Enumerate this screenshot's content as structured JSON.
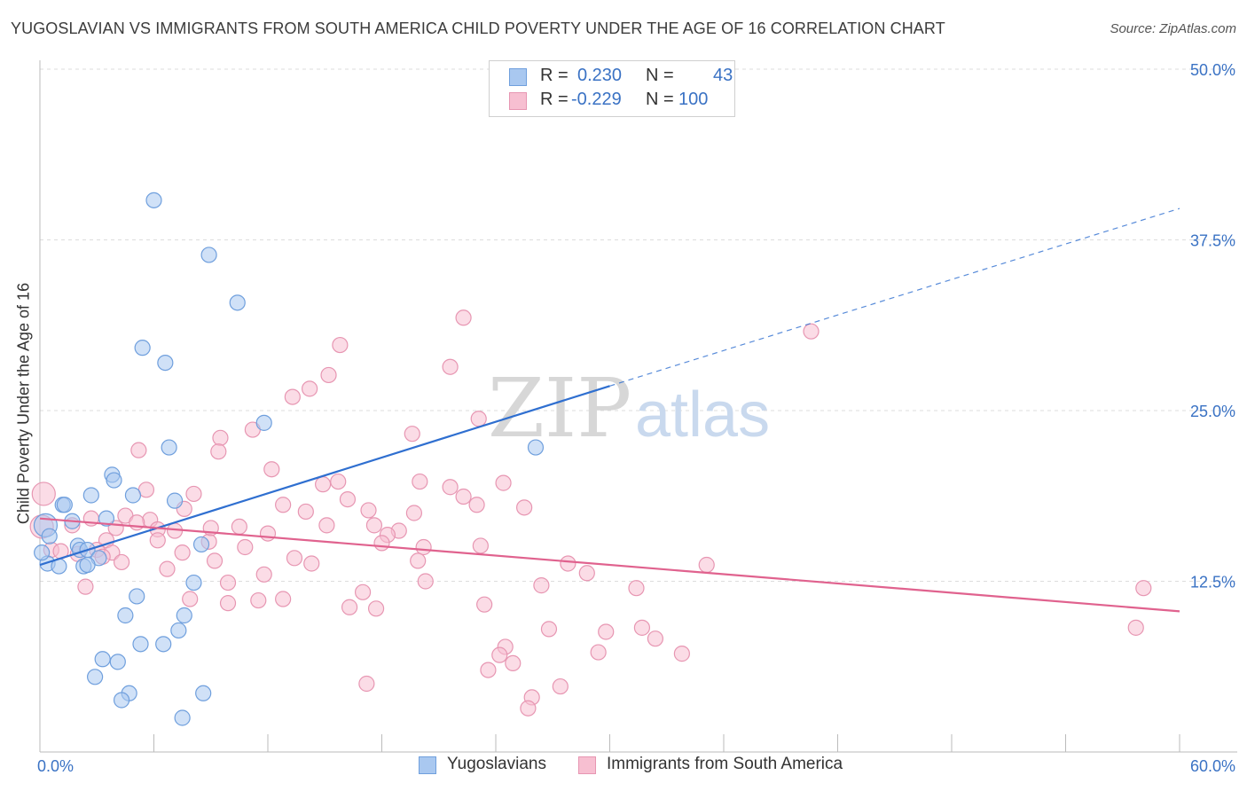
{
  "header": {
    "title": "YUGOSLAVIAN VS IMMIGRANTS FROM SOUTH AMERICA CHILD POVERTY UNDER THE AGE OF 16 CORRELATION CHART",
    "source": "Source: ZipAtlas.com"
  },
  "watermark": {
    "zip": "ZIP",
    "atlas": "atlas"
  },
  "legend": {
    "rows": [
      {
        "r_label": "R =",
        "r_value": "0.230",
        "n_label": "N =",
        "n_value": "43"
      },
      {
        "r_label": "R =",
        "r_value": "-0.229",
        "n_label": "N =",
        "n_value": "100"
      }
    ]
  },
  "bottom_legend": {
    "series1": "Yugoslavians",
    "series2": "Immigrants from South America"
  },
  "colors": {
    "blue_fill": "#a9c8f0",
    "blue_stroke": "#6f9fdd",
    "blue_line": "#2f6fd0",
    "pink_fill": "#f7bfd1",
    "pink_stroke": "#e796b2",
    "pink_line": "#e0628e",
    "tick_label": "#3a72c4",
    "grid": "#dddddd"
  },
  "chart_data": {
    "type": "scatter",
    "title": "YUGOSLAVIAN VS IMMIGRANTS FROM SOUTH AMERICA CHILD POVERTY UNDER THE AGE OF 16 CORRELATION CHART",
    "xlabel": "",
    "ylabel": "Child Poverty Under the Age of 16",
    "xlim": [
      0,
      60
    ],
    "ylim": [
      0,
      50
    ],
    "x_tick_labels": [
      "0.0%",
      "60.0%"
    ],
    "y_ticks": [
      12.5,
      25.0,
      37.5,
      50.0
    ],
    "y_tick_labels": [
      "12.5%",
      "25.0%",
      "37.5%",
      "50.0%"
    ],
    "grid": true,
    "legend_position": "top-center",
    "series": [
      {
        "name": "Yugoslavians",
        "color": "#a9c8f0",
        "trend": {
          "x": [
            0,
            30
          ],
          "y": [
            13.7,
            26.8
          ],
          "dashed_extension_to": [
            60,
            39.8
          ]
        },
        "points": [
          [
            6.0,
            40.4
          ],
          [
            8.9,
            36.4
          ],
          [
            10.4,
            32.9
          ],
          [
            5.4,
            29.6
          ],
          [
            6.6,
            28.5
          ],
          [
            11.8,
            24.1
          ],
          [
            6.8,
            22.3
          ],
          [
            26.1,
            22.3
          ],
          [
            3.8,
            20.3
          ],
          [
            3.9,
            19.9
          ],
          [
            2.7,
            18.8
          ],
          [
            4.9,
            18.8
          ],
          [
            7.1,
            18.4
          ],
          [
            1.2,
            18.1
          ],
          [
            1.3,
            18.1
          ],
          [
            0.3,
            16.6
          ],
          [
            1.7,
            16.9
          ],
          [
            3.5,
            17.1
          ],
          [
            0.5,
            15.8
          ],
          [
            2.0,
            15.1
          ],
          [
            2.1,
            14.8
          ],
          [
            2.5,
            14.8
          ],
          [
            8.5,
            15.2
          ],
          [
            3.1,
            14.2
          ],
          [
            0.4,
            13.8
          ],
          [
            1.0,
            13.6
          ],
          [
            2.3,
            13.6
          ],
          [
            2.5,
            13.7
          ],
          [
            8.1,
            12.4
          ],
          [
            5.1,
            11.4
          ],
          [
            4.5,
            10.0
          ],
          [
            7.6,
            10.0
          ],
          [
            7.3,
            8.9
          ],
          [
            5.3,
            7.9
          ],
          [
            6.5,
            7.9
          ],
          [
            3.3,
            6.8
          ],
          [
            4.1,
            6.6
          ],
          [
            2.9,
            5.5
          ],
          [
            4.7,
            4.3
          ],
          [
            8.6,
            4.3
          ],
          [
            4.3,
            3.8
          ],
          [
            7.5,
            2.5
          ],
          [
            0.1,
            14.6
          ]
        ]
      },
      {
        "name": "Immigrants from South America",
        "color": "#f7bfd1",
        "trend": {
          "x": [
            0,
            60
          ],
          "y": [
            17.1,
            10.3
          ]
        },
        "points": [
          [
            22.3,
            31.8
          ],
          [
            40.6,
            30.8
          ],
          [
            15.8,
            29.8
          ],
          [
            21.6,
            28.2
          ],
          [
            15.2,
            27.6
          ],
          [
            14.2,
            26.6
          ],
          [
            13.3,
            26.0
          ],
          [
            23.1,
            24.4
          ],
          [
            11.2,
            23.6
          ],
          [
            19.6,
            23.3
          ],
          [
            9.5,
            23.0
          ],
          [
            5.2,
            22.1
          ],
          [
            9.4,
            22.0
          ],
          [
            12.2,
            20.7
          ],
          [
            20.0,
            19.8
          ],
          [
            24.4,
            19.7
          ],
          [
            15.7,
            19.8
          ],
          [
            14.9,
            19.6
          ],
          [
            21.6,
            19.4
          ],
          [
            5.6,
            19.2
          ],
          [
            22.3,
            18.7
          ],
          [
            8.1,
            18.9
          ],
          [
            16.2,
            18.5
          ],
          [
            12.8,
            18.1
          ],
          [
            23.0,
            18.1
          ],
          [
            25.5,
            17.9
          ],
          [
            7.6,
            17.8
          ],
          [
            17.3,
            17.7
          ],
          [
            14.0,
            17.6
          ],
          [
            19.7,
            17.5
          ],
          [
            4.5,
            17.3
          ],
          [
            2.7,
            17.1
          ],
          [
            5.8,
            17.0
          ],
          [
            5.1,
            16.8
          ],
          [
            1.7,
            16.6
          ],
          [
            10.5,
            16.5
          ],
          [
            15.1,
            16.6
          ],
          [
            17.6,
            16.6
          ],
          [
            4.0,
            16.4
          ],
          [
            6.2,
            16.3
          ],
          [
            7.1,
            16.2
          ],
          [
            18.9,
            16.2
          ],
          [
            12.0,
            16.0
          ],
          [
            18.3,
            15.9
          ],
          [
            3.5,
            15.5
          ],
          [
            6.2,
            15.5
          ],
          [
            8.9,
            15.4
          ],
          [
            18.0,
            15.3
          ],
          [
            20.2,
            15.0
          ],
          [
            23.2,
            15.1
          ],
          [
            10.8,
            15.0
          ],
          [
            0.6,
            14.8
          ],
          [
            3.0,
            14.8
          ],
          [
            1.1,
            14.7
          ],
          [
            7.5,
            14.6
          ],
          [
            2.0,
            14.5
          ],
          [
            3.8,
            14.6
          ],
          [
            3.3,
            14.3
          ],
          [
            13.4,
            14.2
          ],
          [
            4.3,
            13.9
          ],
          [
            9.2,
            14.0
          ],
          [
            14.3,
            13.8
          ],
          [
            19.9,
            14.0
          ],
          [
            27.8,
            13.8
          ],
          [
            35.1,
            13.7
          ],
          [
            6.7,
            13.4
          ],
          [
            11.8,
            13.0
          ],
          [
            9.9,
            12.4
          ],
          [
            20.3,
            12.5
          ],
          [
            26.4,
            12.2
          ],
          [
            31.4,
            12.0
          ],
          [
            2.4,
            12.1
          ],
          [
            12.8,
            11.2
          ],
          [
            17.0,
            11.7
          ],
          [
            7.9,
            11.2
          ],
          [
            9.9,
            10.9
          ],
          [
            11.5,
            11.1
          ],
          [
            16.3,
            10.6
          ],
          [
            17.7,
            10.5
          ],
          [
            23.4,
            10.8
          ],
          [
            28.8,
            13.1
          ],
          [
            58.1,
            12.0
          ],
          [
            26.8,
            9.0
          ],
          [
            29.8,
            8.8
          ],
          [
            31.7,
            9.1
          ],
          [
            57.7,
            9.1
          ],
          [
            32.4,
            8.3
          ],
          [
            24.5,
            7.7
          ],
          [
            24.2,
            7.1
          ],
          [
            29.4,
            7.3
          ],
          [
            33.8,
            7.2
          ],
          [
            24.9,
            6.5
          ],
          [
            0.2,
            18.9
          ],
          [
            0.1,
            16.5
          ],
          [
            27.4,
            4.8
          ],
          [
            17.2,
            5.0
          ],
          [
            23.6,
            6.0
          ],
          [
            25.9,
            4.0
          ],
          [
            25.7,
            3.2
          ],
          [
            9.0,
            16.4
          ]
        ]
      }
    ]
  }
}
